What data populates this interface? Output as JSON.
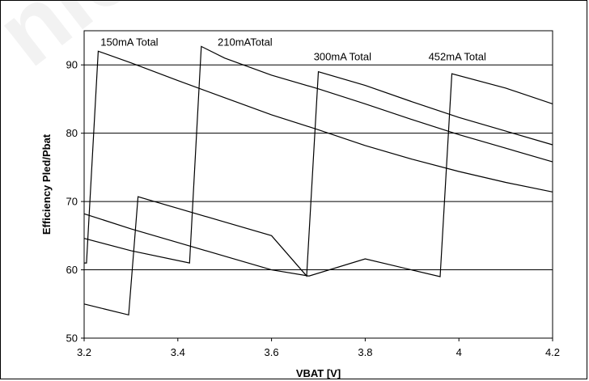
{
  "watermark": "nic",
  "chart_data": {
    "type": "line",
    "title": "",
    "xlabel": "VBAT [V]",
    "ylabel": "Efficiency Pled/Pbat",
    "xlim": [
      3.2,
      4.2
    ],
    "ylim": [
      50,
      95
    ],
    "x_ticks": [
      "3.2",
      "3.4",
      "3.6",
      "3.8",
      "4",
      "4.2"
    ],
    "y_ticks": [
      "50",
      "60",
      "70",
      "80",
      "90"
    ],
    "grid": "horizontal",
    "legend": "none",
    "series_color": "#000000",
    "annotations": [
      {
        "text": "150mA Total",
        "x": 3.235,
        "y": 92.8
      },
      {
        "text": "210mATotal",
        "x": 3.485,
        "y": 92.8
      },
      {
        "text": "300mA Total",
        "x": 3.69,
        "y": 90.7
      },
      {
        "text": "452mA Total",
        "x": 3.935,
        "y": 90.7
      }
    ],
    "series": [
      {
        "values": [
          [
            3.2,
            61.0
          ],
          [
            3.205,
            61.0
          ],
          [
            3.23,
            92.0
          ],
          [
            3.3,
            90.3
          ],
          [
            3.4,
            87.7
          ],
          [
            3.5,
            85.2
          ],
          [
            3.6,
            82.7
          ],
          [
            3.7,
            80.5
          ],
          [
            3.8,
            78.2
          ],
          [
            3.9,
            76.2
          ],
          [
            4.0,
            74.4
          ],
          [
            4.1,
            72.8
          ],
          [
            4.2,
            71.4
          ]
        ]
      },
      {
        "values": [
          [
            3.2,
            64.6
          ],
          [
            3.3,
            62.8
          ],
          [
            3.425,
            61.0
          ],
          [
            3.45,
            92.7
          ],
          [
            3.5,
            91.0
          ],
          [
            3.6,
            88.5
          ],
          [
            3.7,
            86.5
          ],
          [
            3.8,
            84.3
          ],
          [
            3.9,
            82.0
          ],
          [
            4.0,
            79.8
          ],
          [
            4.1,
            77.8
          ],
          [
            4.2,
            75.8
          ]
        ]
      },
      {
        "values": [
          [
            3.2,
            55.0
          ],
          [
            3.295,
            53.4
          ],
          [
            3.315,
            70.7
          ],
          [
            3.4,
            69.0
          ],
          [
            3.5,
            67.0
          ],
          [
            3.6,
            65.0
          ],
          [
            3.675,
            59.1
          ],
          [
            3.7,
            89.0
          ],
          [
            3.8,
            87.0
          ],
          [
            3.9,
            84.6
          ],
          [
            4.0,
            82.3
          ],
          [
            4.1,
            80.3
          ],
          [
            4.2,
            78.3
          ]
        ]
      },
      {
        "values": [
          [
            3.2,
            68.2
          ],
          [
            3.3,
            66.0
          ],
          [
            3.4,
            64.0
          ],
          [
            3.5,
            62.0
          ],
          [
            3.6,
            60.0
          ],
          [
            3.68,
            59.1
          ],
          [
            3.8,
            61.6
          ],
          [
            3.96,
            59.0
          ],
          [
            3.985,
            88.7
          ],
          [
            4.1,
            86.6
          ],
          [
            4.2,
            84.3
          ]
        ]
      }
    ]
  }
}
